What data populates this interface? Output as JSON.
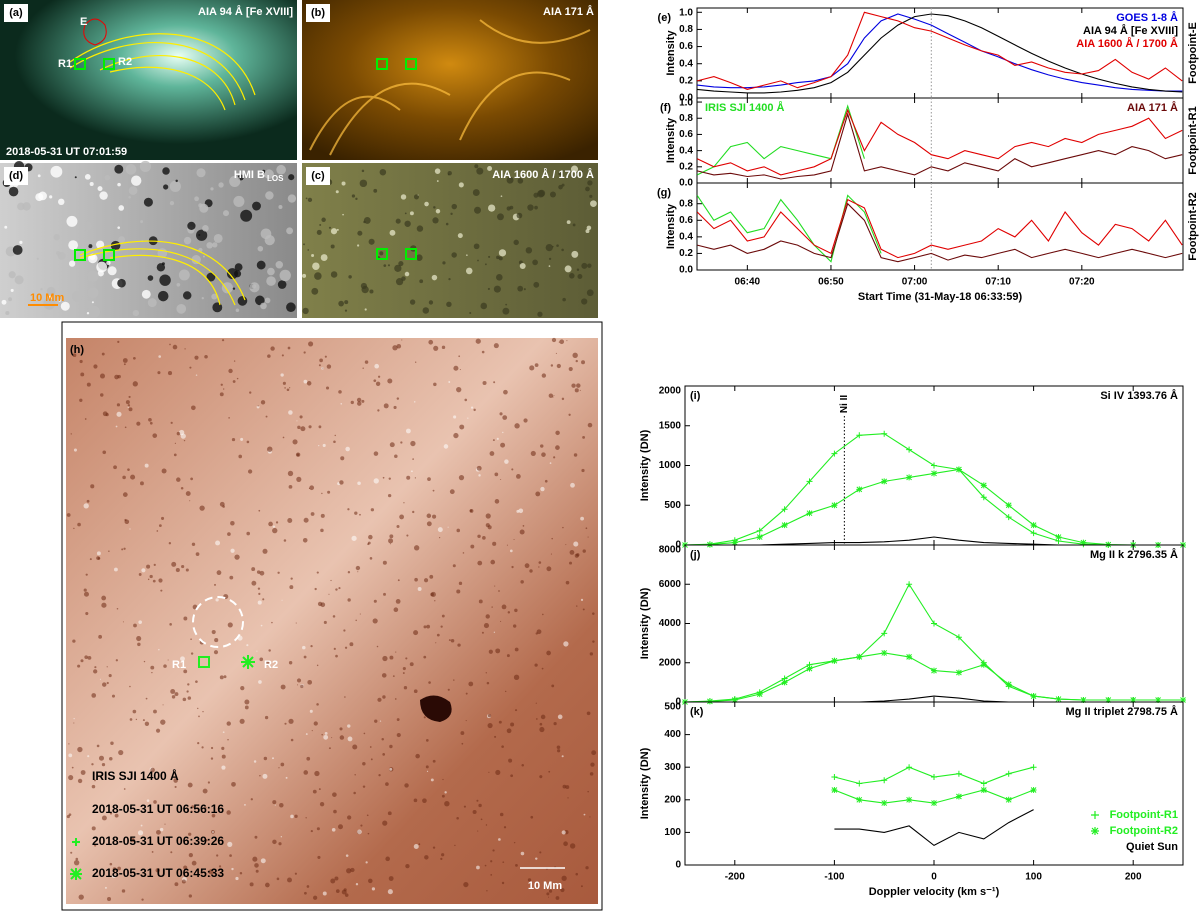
{
  "images": {
    "a": {
      "label": "(a)",
      "title": "AIA 94 Å [Fe XVIII]",
      "date": "2018-05-31 UT 07:01:59",
      "e": "E",
      "r1": "R1",
      "r2": "R2"
    },
    "b": {
      "label": "(b)",
      "title": "AIA 171 Å"
    },
    "d": {
      "label": "(d)",
      "title": "HMI B",
      "title_sub": "LOS",
      "scale": "10 Mm"
    },
    "c": {
      "label": "(c)",
      "title": "AIA 1600 Å / 1700 Å"
    },
    "h": {
      "label": "(h)",
      "r1": "R1",
      "r2": "R2",
      "instrument": "IRIS SJI 1400 Å",
      "times": [
        "2018-05-31 UT 06:56:16",
        "2018-05-31 UT 06:39:26",
        "2018-05-31 UT 06:45:33"
      ],
      "scale": "10 Mm"
    }
  },
  "chart_data": [
    {
      "type": "line",
      "label": "(e)",
      "ylabel": "Intensity",
      "side_label": "Footpoint-E",
      "legend": "upper right",
      "xlim": [
        33.98,
        92.1
      ],
      "xticks": [
        40,
        50,
        60,
        70,
        80
      ],
      "xtick_labels": false,
      "vline": 62,
      "ylim": [
        0,
        1.05
      ],
      "yticks": [
        {
          "value": 0,
          "label": "0.0"
        },
        {
          "value": 0.2,
          "label": "0.2"
        },
        {
          "value": 0.4,
          "label": "0.4"
        },
        {
          "value": 0.6,
          "label": "0.6"
        },
        {
          "value": 0.8,
          "label": "0.8"
        },
        {
          "value": 1,
          "label": "1.0"
        }
      ],
      "x": [
        34,
        36,
        38,
        40,
        42,
        44,
        46,
        48,
        50,
        52,
        54,
        56,
        58,
        60,
        62,
        64,
        66,
        68,
        70,
        72,
        74,
        76,
        78,
        80,
        82,
        84,
        86,
        88,
        90,
        92
      ],
      "series": [
        {
          "name": "GOES 1-8 Å",
          "color": "#0000e0",
          "values": [
            0.15,
            0.13,
            0.12,
            0.12,
            0.13,
            0.15,
            0.18,
            0.2,
            0.25,
            0.4,
            0.7,
            0.9,
            0.98,
            0.92,
            0.85,
            0.75,
            0.65,
            0.55,
            0.48,
            0.4,
            0.33,
            0.27,
            0.22,
            0.18,
            0.15,
            0.12,
            0.1,
            0.09,
            0.08,
            0.08
          ]
        },
        {
          "name": "AIA 94 Å [Fe XVIII]",
          "color": "#000000",
          "values": [
            0.1,
            0.08,
            0.07,
            0.06,
            0.06,
            0.07,
            0.09,
            0.12,
            0.18,
            0.3,
            0.5,
            0.7,
            0.85,
            0.95,
            0.98,
            0.96,
            0.9,
            0.82,
            0.72,
            0.62,
            0.52,
            0.43,
            0.35,
            0.28,
            0.22,
            0.17,
            0.13,
            0.1,
            0.08,
            0.07
          ]
        },
        {
          "name": "AIA 1600 Å / 1700 Å",
          "color": "#e00000",
          "values": [
            0.2,
            0.25,
            0.18,
            0.1,
            0.15,
            0.2,
            0.12,
            0.18,
            0.25,
            0.5,
            1.0,
            0.95,
            0.9,
            0.82,
            0.78,
            0.7,
            0.62,
            0.55,
            0.5,
            0.38,
            0.42,
            0.35,
            0.3,
            0.28,
            0.32,
            0.45,
            0.3,
            0.22,
            0.35,
            0.2
          ]
        }
      ]
    },
    {
      "type": "line",
      "label": "(f)",
      "ylabel": "Intensity",
      "side_label": "Footpoint-R1",
      "legend": "upper right",
      "xlim": [
        33.98,
        92.1
      ],
      "xticks": [
        40,
        50,
        60,
        70,
        80
      ],
      "xtick_labels": false,
      "vline": 62,
      "ylim": [
        0,
        1.05
      ],
      "yticks": [
        {
          "value": 0,
          "label": "0.0"
        },
        {
          "value": 0.2,
          "label": "0.2"
        },
        {
          "value": 0.4,
          "label": "0.4"
        },
        {
          "value": 0.6,
          "label": "0.6"
        },
        {
          "value": 0.8,
          "label": "0.8"
        },
        {
          "value": 1,
          "label": "1.0"
        }
      ],
      "x": [
        34,
        36,
        38,
        40,
        42,
        44,
        46,
        48,
        50,
        52,
        54,
        56,
        58,
        60,
        62,
        64,
        66,
        68,
        70,
        72,
        74,
        76,
        78,
        80,
        82,
        84,
        86,
        88,
        90,
        92
      ],
      "series": [
        {
          "name": "IRIS SJI 1400 Å",
          "color": "#22dd22",
          "legend": "upper left",
          "values": [
            0.1,
            0.2,
            0.45,
            0.5,
            0.3,
            0.45,
            0.4,
            0.35,
            0.3,
            0.95,
            0.3,
            null,
            null,
            null,
            null,
            null,
            null,
            null,
            null,
            null,
            null,
            null,
            null,
            null,
            null,
            null,
            null,
            null,
            null,
            null
          ]
        },
        {
          "color": "#e00000",
          "values": [
            0.3,
            0.2,
            0.25,
            0.15,
            0.2,
            0.1,
            0.15,
            0.2,
            0.3,
            0.9,
            0.4,
            0.75,
            0.6,
            0.5,
            0.35,
            0.3,
            0.4,
            0.35,
            0.3,
            0.45,
            0.5,
            0.45,
            0.55,
            0.5,
            0.6,
            0.65,
            0.7,
            0.8,
            0.55,
            0.65
          ]
        },
        {
          "name": "AIA 171 Å",
          "color": "#6b0a0a",
          "values": [
            0.15,
            0.1,
            0.12,
            0.08,
            0.1,
            0.05,
            0.08,
            0.1,
            0.15,
            0.85,
            0.15,
            0.2,
            0.15,
            0.1,
            0.2,
            0.15,
            0.25,
            0.2,
            0.15,
            0.3,
            0.2,
            0.25,
            0.3,
            0.35,
            0.4,
            0.35,
            0.45,
            0.4,
            0.3,
            0.35
          ]
        }
      ]
    },
    {
      "type": "line",
      "label": "(g)",
      "ylabel": "Intensity",
      "side_label": "Footpoint-R2",
      "xlabel": "Start Time (31-May-18 06:33:59)",
      "xlim": [
        33.98,
        92.1
      ],
      "xticks": [
        {
          "value": 40,
          "label": "06:40"
        },
        {
          "value": 50,
          "label": "06:50"
        },
        {
          "value": 60,
          "label": "07:00"
        },
        {
          "value": 70,
          "label": "07:10"
        },
        {
          "value": 80,
          "label": "07:20"
        }
      ],
      "xtick_labels": true,
      "vline": 62,
      "ylim": [
        0,
        1.05
      ],
      "yticks": [
        {
          "value": 0,
          "label": "0.0"
        },
        {
          "value": 0.2,
          "label": "0.2"
        },
        {
          "value": 0.4,
          "label": "0.4"
        },
        {
          "value": 0.6,
          "label": "0.6"
        },
        {
          "value": 0.8,
          "label": "0.8"
        }
      ],
      "x": [
        34,
        36,
        38,
        40,
        42,
        44,
        46,
        48,
        50,
        52,
        54,
        56,
        58,
        60,
        62,
        64,
        66,
        68,
        70,
        72,
        74,
        76,
        78,
        80,
        82,
        84,
        86,
        88,
        90,
        92
      ],
      "series": [
        {
          "color": "#22dd22",
          "values": [
            0.9,
            0.6,
            0.7,
            0.45,
            0.5,
            0.85,
            0.6,
            0.3,
            0.1,
            0.9,
            0.7,
            0.2,
            null,
            null,
            null,
            null,
            null,
            null,
            null,
            null,
            null,
            null,
            null,
            null,
            null,
            null,
            null,
            null,
            null,
            null
          ]
        },
        {
          "color": "#e00000",
          "values": [
            0.7,
            0.5,
            0.6,
            0.35,
            0.4,
            0.7,
            0.5,
            0.3,
            0.2,
            0.85,
            0.75,
            0.25,
            0.15,
            0.2,
            0.3,
            0.25,
            0.3,
            0.35,
            0.5,
            0.4,
            0.6,
            0.35,
            0.7,
            0.45,
            0.3,
            0.55,
            0.5,
            0.35,
            0.6,
            0.3
          ]
        },
        {
          "color": "#6b0a0a",
          "values": [
            0.3,
            0.25,
            0.3,
            0.2,
            0.25,
            0.35,
            0.3,
            0.2,
            0.15,
            0.8,
            0.6,
            0.15,
            0.1,
            0.15,
            0.2,
            0.12,
            0.18,
            0.15,
            0.2,
            0.25,
            0.15,
            0.2,
            0.25,
            0.2,
            0.15,
            0.2,
            0.25,
            0.2,
            0.15,
            0.2
          ]
        }
      ]
    },
    {
      "type": "line",
      "label": "(i)",
      "title": "Si IV 1393.76 Å",
      "ylabel": "Intensity (DN)",
      "vline": -90,
      "vline_label": "Ni II",
      "xlim": [
        -250,
        250
      ],
      "xticks": [
        -200,
        -100,
        0,
        100,
        200
      ],
      "xtick_labels": false,
      "ylim": [
        0,
        2000
      ],
      "yticks": [
        0,
        500,
        1000,
        1500,
        2000
      ],
      "x": [
        -250,
        -225,
        -200,
        -175,
        -150,
        -125,
        -100,
        -75,
        -50,
        -25,
        0,
        25,
        50,
        75,
        100,
        125,
        150,
        175,
        200,
        225,
        250
      ],
      "series": [
        {
          "color": "#22ee22",
          "marker": "plus",
          "values": [
            0,
            10,
            60,
            180,
            450,
            800,
            1150,
            1380,
            1400,
            1200,
            1000,
            950,
            600,
            350,
            150,
            50,
            10,
            0,
            0,
            0,
            0
          ]
        },
        {
          "color": "#22ee22",
          "marker": "star",
          "values": [
            0,
            5,
            30,
            100,
            250,
            400,
            500,
            700,
            800,
            850,
            900,
            950,
            750,
            500,
            250,
            100,
            30,
            5,
            0,
            0,
            0
          ]
        },
        {
          "color": "#000000",
          "values": [
            0,
            0,
            0,
            0,
            10,
            20,
            30,
            30,
            40,
            60,
            100,
            60,
            30,
            20,
            10,
            0,
            0,
            0,
            0,
            0,
            0
          ]
        }
      ]
    },
    {
      "type": "line",
      "label": "(j)",
      "title": "Mg II k 2796.35 Å",
      "ylabel": "Intensity (DN)",
      "xlim": [
        -250,
        250
      ],
      "xticks": [
        -200,
        -100,
        0,
        100,
        200
      ],
      "xtick_labels": false,
      "ylim": [
        0,
        8000
      ],
      "yticks": [
        0,
        2000,
        4000,
        6000,
        8000
      ],
      "x": [
        -250,
        -225,
        -200,
        -175,
        -150,
        -125,
        -100,
        -75,
        -50,
        -25,
        0,
        25,
        50,
        75,
        100,
        125,
        150,
        175,
        200,
        225,
        250
      ],
      "series": [
        {
          "color": "#22ee22",
          "marker": "plus",
          "values": [
            0,
            50,
            150,
            500,
            1200,
            1900,
            2100,
            2300,
            3500,
            6000,
            4000,
            3300,
            2000,
            800,
            300,
            150,
            100,
            100,
            100,
            100,
            100
          ]
        },
        {
          "color": "#22ee22",
          "marker": "star",
          "values": [
            0,
            30,
            100,
            400,
            1000,
            1700,
            2100,
            2300,
            2500,
            2300,
            1600,
            1500,
            1900,
            900,
            300,
            150,
            100,
            100,
            100,
            100,
            100
          ]
        },
        {
          "color": "#000000",
          "values": [
            0,
            0,
            0,
            0,
            0,
            0,
            0,
            0,
            50,
            150,
            300,
            200,
            50,
            0,
            0,
            0,
            0,
            0,
            0,
            0,
            0
          ]
        }
      ]
    },
    {
      "type": "line",
      "label": "(k)",
      "title": "Mg II triplet 2798.75 Å",
      "ylabel": "Intensity (DN)",
      "xlabel": "Doppler velocity (km s⁻¹)",
      "legend": "lower right",
      "xlim": [
        -250,
        250
      ],
      "xticks": [
        -200,
        -100,
        0,
        100,
        200
      ],
      "xtick_labels": true,
      "ylim": [
        0,
        500
      ],
      "yticks": [
        0,
        100,
        200,
        300,
        400,
        500
      ],
      "x": [
        -250,
        -225,
        -200,
        -175,
        -150,
        -125,
        -100,
        -75,
        -50,
        -25,
        0,
        25,
        50,
        75,
        100,
        125,
        150,
        175,
        200,
        225,
        250
      ],
      "series": [
        {
          "name": "Footpoint-R1",
          "color": "#22ee22",
          "marker": "plus",
          "values": [
            null,
            null,
            null,
            null,
            null,
            null,
            270,
            250,
            260,
            300,
            270,
            280,
            250,
            280,
            300,
            null,
            null,
            null,
            null,
            null,
            null
          ]
        },
        {
          "name": "Footpoint-R2",
          "color": "#22ee22",
          "marker": "star",
          "values": [
            null,
            null,
            null,
            null,
            null,
            null,
            230,
            200,
            190,
            200,
            190,
            210,
            230,
            200,
            230,
            null,
            null,
            null,
            null,
            null,
            null
          ]
        },
        {
          "name": "Quiet Sun",
          "color": "#000000",
          "values": [
            null,
            null,
            null,
            null,
            null,
            null,
            110,
            110,
            100,
            120,
            60,
            100,
            80,
            130,
            170,
            null,
            null,
            null,
            null,
            null,
            null
          ]
        }
      ]
    }
  ]
}
